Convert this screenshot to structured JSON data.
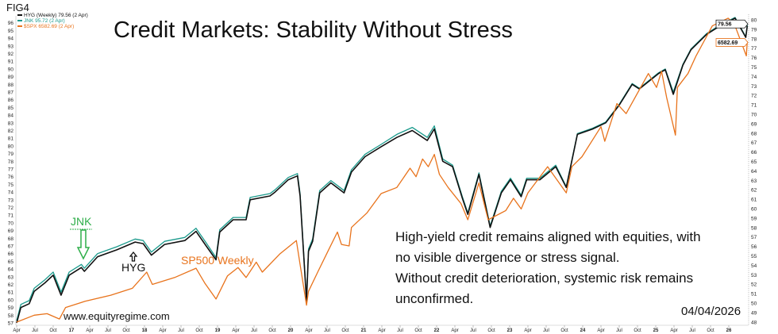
{
  "figure_label": "FIG4",
  "annotations": {
    "jnk_label": "JNK",
    "hyg_label": "HYG",
    "spx_label": "SP500 Weekly",
    "note_lines": [
      "High-yield credit remains aligned with equities, with",
      "no visible divergence or stress signal.",
      "Without credit deterioration, systemic risk remains",
      "unconfirmed."
    ],
    "website": "www.equityregime.com",
    "date": "04/04/2026"
  },
  "chart_data": {
    "type": "line",
    "title": "Credit Markets: Stability Without Stress",
    "xlabel": "",
    "ylabel": "",
    "grid": false,
    "legend_position": "top-left",
    "legend": [
      {
        "text": "HYG (Weekly) 79.56 (2 Apr)",
        "color": "#111111"
      },
      {
        "text": "JNK 95.72 (2 Apr)",
        "color": "#1a9a8c"
      },
      {
        "text": "$SPX 6582.69 (2 Apr)",
        "color": "#e8731c"
      }
    ],
    "last_value_tags": [
      {
        "text": "79.56",
        "color": "#111111"
      },
      {
        "text": "6582.69",
        "color": "#e8731c"
      }
    ],
    "xlim": [
      "2016-04-01",
      "2026-04-03"
    ],
    "x_tick_labels": [
      "Apr",
      "Jul",
      "Oct",
      "17",
      "Apr",
      "Jul",
      "Oct",
      "18",
      "Apr",
      "Jul",
      "Oct",
      "19",
      "Apr",
      "Jul",
      "Oct",
      "20",
      "Apr",
      "Jul",
      "Oct",
      "21",
      "Apr",
      "Jul",
      "Oct",
      "22",
      "Apr",
      "Jul",
      "Oct",
      "23",
      "Apr",
      "Jul",
      "Oct",
      "24",
      "Apr",
      "Jul",
      "Oct",
      "25",
      "Apr",
      "Jul",
      "Oct",
      "26"
    ],
    "left_axis": {
      "ylim": [
        57,
        96
      ],
      "ticks": [
        57,
        58,
        59,
        60,
        61,
        62,
        63,
        64,
        65,
        66,
        67,
        68,
        69,
        70,
        71,
        72,
        73,
        74,
        75,
        76,
        77,
        78,
        79,
        80,
        81,
        82,
        83,
        84,
        85,
        86,
        87,
        88,
        89,
        90,
        91,
        92,
        93,
        94,
        95,
        96
      ]
    },
    "right_axis": {
      "ylim": [
        48,
        80
      ],
      "ticks": [
        48,
        49,
        50,
        51,
        52,
        53,
        54,
        55,
        56,
        57,
        58,
        59,
        60,
        61,
        62,
        63,
        64,
        65,
        66,
        67,
        68,
        69,
        70,
        71,
        72,
        73,
        74,
        75,
        76,
        77,
        78,
        79,
        80
      ]
    },
    "series_note_axis": "left",
    "series": [
      {
        "name": "JNK",
        "color": "#1a9a8c",
        "points": [
          [
            "2016-04-01",
            57.3
          ],
          [
            "2016-04-22",
            59.4
          ],
          [
            "2016-06-03",
            59.9
          ],
          [
            "2016-06-28",
            61.5
          ],
          [
            "2016-08-20",
            62.6
          ],
          [
            "2016-10-01",
            63.6
          ],
          [
            "2016-11-10",
            61.0
          ],
          [
            "2016-12-20",
            63.6
          ],
          [
            "2017-02-20",
            64.6
          ],
          [
            "2017-03-05",
            64.1
          ],
          [
            "2017-05-10",
            66.0
          ],
          [
            "2017-08-15",
            66.9
          ],
          [
            "2017-11-15",
            67.9
          ],
          [
            "2017-12-25",
            67.7
          ],
          [
            "2018-02-05",
            66.2
          ],
          [
            "2018-04-10",
            67.6
          ],
          [
            "2018-07-20",
            68.1
          ],
          [
            "2018-09-15",
            69.3
          ],
          [
            "2018-11-05",
            67.4
          ],
          [
            "2018-12-24",
            65.5
          ],
          [
            "2019-01-12",
            69.1
          ],
          [
            "2019-03-18",
            70.7
          ],
          [
            "2019-05-22",
            70.7
          ],
          [
            "2019-06-12",
            73.3
          ],
          [
            "2019-09-20",
            73.8
          ],
          [
            "2019-10-15",
            74.3
          ],
          [
            "2019-12-20",
            75.9
          ],
          [
            "2020-02-05",
            76.4
          ],
          [
            "2020-02-18",
            73.8
          ],
          [
            "2020-03-20",
            60.1
          ],
          [
            "2020-03-30",
            66.6
          ],
          [
            "2020-04-20",
            67.9
          ],
          [
            "2020-05-25",
            74.2
          ],
          [
            "2020-07-20",
            75.5
          ],
          [
            "2020-09-25",
            74.2
          ],
          [
            "2020-11-01",
            76.9
          ],
          [
            "2021-01-08",
            78.9
          ],
          [
            "2021-03-28",
            80.2
          ],
          [
            "2021-06-15",
            81.5
          ],
          [
            "2021-09-01",
            82.4
          ],
          [
            "2021-11-15",
            81.1
          ],
          [
            "2021-12-20",
            82.6
          ],
          [
            "2022-02-01",
            78.3
          ],
          [
            "2022-03-20",
            77.5
          ],
          [
            "2022-05-08",
            73.4
          ],
          [
            "2022-06-05",
            71.3
          ],
          [
            "2022-07-30",
            76.5
          ],
          [
            "2022-09-25",
            69.6
          ],
          [
            "2022-11-20",
            74.1
          ],
          [
            "2023-01-05",
            75.8
          ],
          [
            "2023-02-28",
            73.6
          ],
          [
            "2023-03-25",
            75.8
          ],
          [
            "2023-05-30",
            75.8
          ],
          [
            "2023-08-18",
            77.5
          ],
          [
            "2023-10-10",
            74.7
          ],
          [
            "2023-12-05",
            81.6
          ],
          [
            "2024-02-20",
            82.3
          ],
          [
            "2024-04-25",
            83.1
          ],
          [
            "2024-07-01",
            85.4
          ],
          [
            "2024-09-05",
            88.1
          ],
          [
            "2024-10-10",
            87.5
          ],
          [
            "2025-01-15",
            89.5
          ],
          [
            "2025-02-18",
            90.0
          ],
          [
            "2025-03-28",
            87.0
          ],
          [
            "2025-05-15",
            90.6
          ],
          [
            "2025-06-25",
            92.6
          ],
          [
            "2025-09-12",
            94.6
          ],
          [
            "2025-11-18",
            95.7
          ],
          [
            "2026-02-02",
            96.7
          ],
          [
            "2026-03-25",
            94.2
          ],
          [
            "2026-04-02",
            95.7
          ]
        ]
      },
      {
        "name": "HYG",
        "color": "#111111",
        "points": [
          [
            "2016-04-01",
            57.0
          ],
          [
            "2016-04-22",
            59.0
          ],
          [
            "2016-06-03",
            59.5
          ],
          [
            "2016-06-28",
            61.1
          ],
          [
            "2016-08-20",
            62.2
          ],
          [
            "2016-10-01",
            63.2
          ],
          [
            "2016-11-10",
            60.6
          ],
          [
            "2016-12-20",
            63.2
          ],
          [
            "2017-02-20",
            64.2
          ],
          [
            "2017-03-05",
            63.7
          ],
          [
            "2017-05-10",
            65.6
          ],
          [
            "2017-08-15",
            66.5
          ],
          [
            "2017-11-15",
            67.5
          ],
          [
            "2017-12-25",
            67.3
          ],
          [
            "2018-02-05",
            65.8
          ],
          [
            "2018-04-10",
            67.2
          ],
          [
            "2018-07-20",
            67.7
          ],
          [
            "2018-09-15",
            68.9
          ],
          [
            "2018-11-05",
            67.0
          ],
          [
            "2018-12-24",
            65.2
          ],
          [
            "2019-01-12",
            68.8
          ],
          [
            "2019-03-18",
            70.4
          ],
          [
            "2019-05-22",
            70.4
          ],
          [
            "2019-06-12",
            73.0
          ],
          [
            "2019-09-20",
            73.5
          ],
          [
            "2019-10-15",
            74.0
          ],
          [
            "2019-12-20",
            75.6
          ],
          [
            "2020-02-05",
            76.1
          ],
          [
            "2020-02-18",
            73.5
          ],
          [
            "2020-03-20",
            59.8
          ],
          [
            "2020-03-30",
            66.3
          ],
          [
            "2020-04-20",
            67.6
          ],
          [
            "2020-05-25",
            73.9
          ],
          [
            "2020-07-20",
            75.2
          ],
          [
            "2020-09-25",
            73.9
          ],
          [
            "2020-11-01",
            76.6
          ],
          [
            "2021-01-08",
            78.6
          ],
          [
            "2021-03-28",
            79.9
          ],
          [
            "2021-06-15",
            81.1
          ],
          [
            "2021-09-01",
            82.0
          ],
          [
            "2021-11-15",
            80.7
          ],
          [
            "2021-12-20",
            82.2
          ],
          [
            "2022-02-01",
            78.0
          ],
          [
            "2022-03-20",
            77.3
          ],
          [
            "2022-05-08",
            73.2
          ],
          [
            "2022-06-05",
            71.1
          ],
          [
            "2022-07-30",
            76.3
          ],
          [
            "2022-09-25",
            69.4
          ],
          [
            "2022-11-20",
            73.9
          ],
          [
            "2023-01-05",
            75.6
          ],
          [
            "2023-02-28",
            73.4
          ],
          [
            "2023-03-25",
            75.6
          ],
          [
            "2023-05-30",
            75.6
          ],
          [
            "2023-08-18",
            77.3
          ],
          [
            "2023-10-10",
            74.6
          ],
          [
            "2023-12-05",
            81.5
          ],
          [
            "2024-02-20",
            82.2
          ],
          [
            "2024-04-25",
            83.0
          ],
          [
            "2024-07-01",
            85.3
          ],
          [
            "2024-09-05",
            88.0
          ],
          [
            "2024-10-10",
            87.4
          ],
          [
            "2025-01-15",
            89.4
          ],
          [
            "2025-02-18",
            89.9
          ],
          [
            "2025-03-28",
            86.7
          ],
          [
            "2025-05-15",
            90.5
          ],
          [
            "2025-06-25",
            92.5
          ],
          [
            "2025-09-12",
            94.5
          ],
          [
            "2025-11-18",
            95.6
          ],
          [
            "2026-02-02",
            96.6
          ],
          [
            "2026-03-25",
            94.1
          ],
          [
            "2026-04-02",
            95.6
          ]
        ]
      },
      {
        "name": "SP500 Weekly",
        "color": "#e8731c",
        "points": [
          [
            "2016-04-01",
            57.1
          ],
          [
            "2016-06-28",
            58.0
          ],
          [
            "2016-09-01",
            58.2
          ],
          [
            "2016-11-02",
            57.5
          ],
          [
            "2016-12-02",
            59.0
          ],
          [
            "2017-03-08",
            59.8
          ],
          [
            "2017-07-15",
            60.6
          ],
          [
            "2017-11-01",
            61.5
          ],
          [
            "2018-01-12",
            63.6
          ],
          [
            "2018-02-10",
            62.0
          ],
          [
            "2018-05-30",
            62.9
          ],
          [
            "2018-09-15",
            64.1
          ],
          [
            "2018-10-28",
            62.2
          ],
          [
            "2018-12-24",
            60.1
          ],
          [
            "2019-02-20",
            63.1
          ],
          [
            "2019-04-12",
            64.2
          ],
          [
            "2019-05-22",
            62.9
          ],
          [
            "2019-07-12",
            64.9
          ],
          [
            "2019-08-12",
            63.6
          ],
          [
            "2019-11-10",
            66.0
          ],
          [
            "2020-01-30",
            67.7
          ],
          [
            "2020-02-18",
            64.6
          ],
          [
            "2020-03-20",
            59.3
          ],
          [
            "2020-03-30",
            61.1
          ],
          [
            "2020-05-15",
            63.6
          ],
          [
            "2020-07-05",
            66.3
          ],
          [
            "2020-08-22",
            68.8
          ],
          [
            "2020-09-12",
            67.2
          ],
          [
            "2020-10-20",
            67.0
          ],
          [
            "2020-11-01",
            69.4
          ],
          [
            "2021-01-18",
            71.3
          ],
          [
            "2021-03-28",
            73.8
          ],
          [
            "2021-06-15",
            74.6
          ],
          [
            "2021-08-20",
            77.1
          ],
          [
            "2021-09-20",
            76.0
          ],
          [
            "2021-10-22",
            78.3
          ],
          [
            "2021-11-20",
            77.3
          ],
          [
            "2021-12-20",
            78.9
          ],
          [
            "2022-01-15",
            76.3
          ],
          [
            "2022-02-28",
            74.6
          ],
          [
            "2022-05-01",
            72.5
          ],
          [
            "2022-06-05",
            70.4
          ],
          [
            "2022-07-30",
            75.2
          ],
          [
            "2022-09-15",
            70.4
          ],
          [
            "2022-12-12",
            71.6
          ],
          [
            "2023-01-20",
            73.2
          ],
          [
            "2023-02-28",
            71.8
          ],
          [
            "2023-04-01",
            73.9
          ],
          [
            "2023-07-08",
            77.3
          ],
          [
            "2023-10-10",
            73.9
          ],
          [
            "2023-11-08",
            77.3
          ],
          [
            "2023-12-28",
            78.6
          ],
          [
            "2024-04-01",
            82.5
          ],
          [
            "2024-04-20",
            80.6
          ],
          [
            "2024-06-20",
            85.5
          ],
          [
            "2024-08-05",
            84.2
          ],
          [
            "2024-11-25",
            89.4
          ],
          [
            "2025-01-05",
            87.6
          ],
          [
            "2025-01-30",
            89.7
          ],
          [
            "2025-02-25",
            86.3
          ],
          [
            "2025-04-08",
            81.4
          ],
          [
            "2025-04-18",
            87.6
          ],
          [
            "2025-06-10",
            89.4
          ],
          [
            "2025-07-20",
            91.7
          ],
          [
            "2025-10-10",
            95.6
          ],
          [
            "2025-12-28",
            96.6
          ],
          [
            "2026-01-28",
            95.9
          ],
          [
            "2026-03-28",
            91.7
          ],
          [
            "2026-04-02",
            93.6
          ]
        ]
      }
    ]
  }
}
